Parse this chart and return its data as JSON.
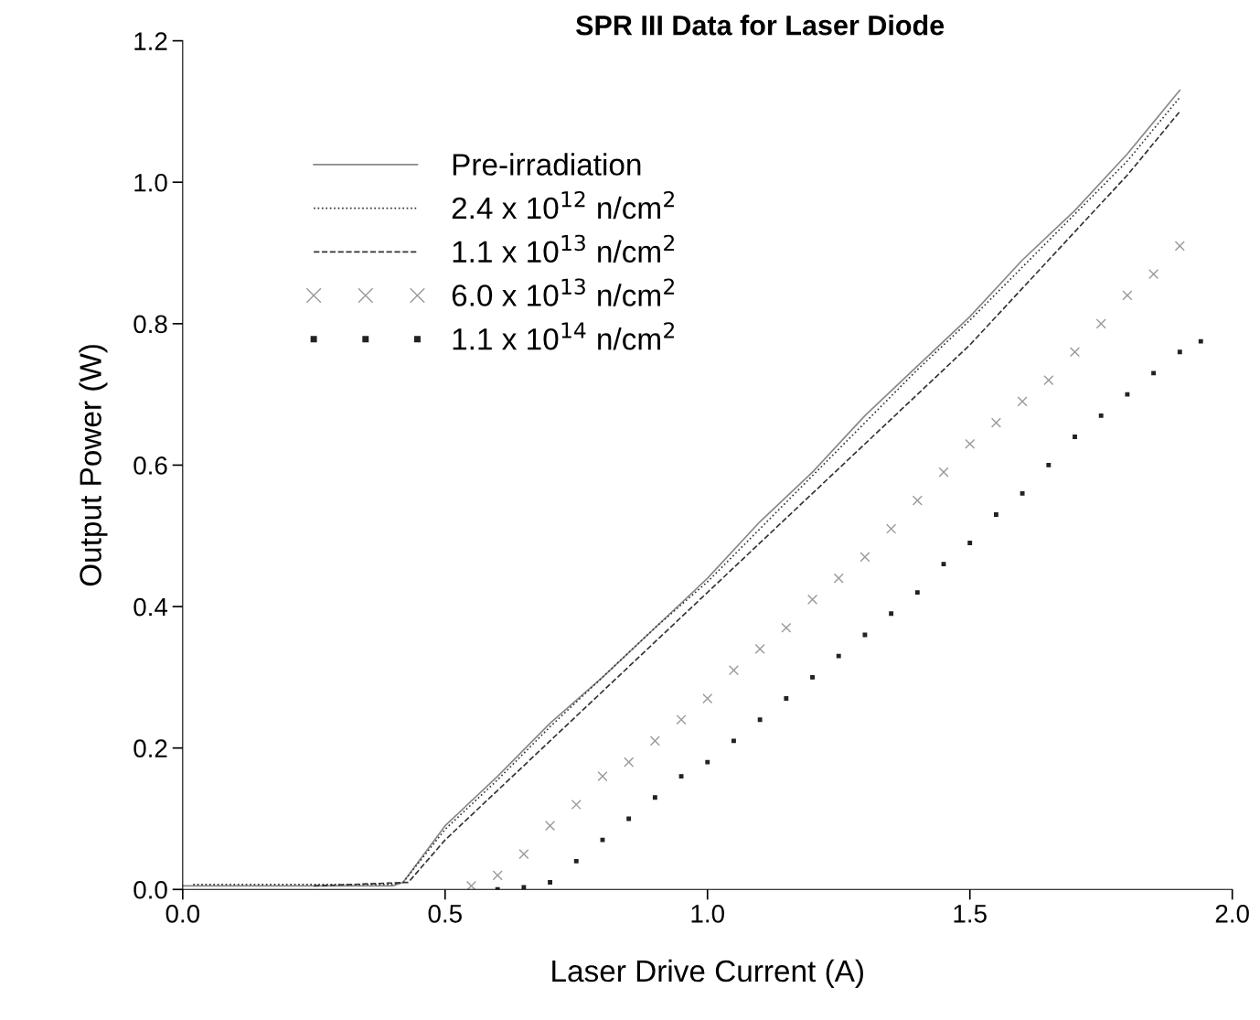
{
  "chart_data": {
    "type": "line",
    "title": "SPR III Data for Laser Diode",
    "xlabel": "Laser Drive Current (A)",
    "ylabel": "Output Power (W)",
    "xlim": [
      0,
      2.0
    ],
    "ylim": [
      0,
      1.2
    ],
    "xticks": [
      {
        "value": 0,
        "label": "0.0"
      },
      {
        "value": 0.5,
        "label": "0.5"
      },
      {
        "value": 1.0,
        "label": "1.0"
      },
      {
        "value": 1.5,
        "label": "1.5"
      },
      {
        "value": 2.0,
        "label": "2.0"
      }
    ],
    "yticks": [
      {
        "value": 0,
        "label": "0.0"
      },
      {
        "value": 0.2,
        "label": "0.2"
      },
      {
        "value": 0.4,
        "label": "0.4"
      },
      {
        "value": 0.6,
        "label": "0.6"
      },
      {
        "value": 0.8,
        "label": "0.8"
      },
      {
        "value": 1.0,
        "label": "1.0"
      },
      {
        "value": 1.2,
        "label": "1.2"
      }
    ],
    "grid": false,
    "legend": "top left",
    "series": [
      {
        "name": "Pre-irradiation",
        "color": "#888888",
        "line_style": "solid",
        "marker": "none",
        "x": [
          0,
          0.2,
          0.4,
          0.42,
          0.5,
          0.6,
          0.7,
          0.8,
          0.9,
          1.0,
          1.1,
          1.2,
          1.3,
          1.4,
          1.5,
          1.6,
          1.7,
          1.8,
          1.9
        ],
        "values": [
          0.005,
          0.005,
          0.005,
          0.01,
          0.09,
          0.16,
          0.235,
          0.3,
          0.37,
          0.44,
          0.52,
          0.59,
          0.67,
          0.74,
          0.81,
          0.89,
          0.96,
          1.04,
          1.13
        ]
      },
      {
        "name": "2.4 x 10$^{12}$ n/cm$^{2}$",
        "color": "#333333",
        "line_style": "dotted",
        "marker": "none",
        "x": [
          0.02,
          0.2,
          0.4,
          0.42,
          0.5,
          0.6,
          0.7,
          0.8,
          0.9,
          1.0,
          1.1,
          1.2,
          1.3,
          1.4,
          1.5,
          1.6,
          1.7,
          1.8,
          1.9
        ],
        "values": [
          0.007,
          0.007,
          0.007,
          0.01,
          0.085,
          0.155,
          0.23,
          0.3,
          0.37,
          0.435,
          0.51,
          0.585,
          0.66,
          0.735,
          0.805,
          0.88,
          0.955,
          1.03,
          1.12
        ]
      },
      {
        "name": "1.1 x 10$^{13}$ n/cm$^{2}$",
        "color": "#333333",
        "line_style": "dashed",
        "marker": "none",
        "x": [
          0.25,
          0.43,
          0.5,
          0.6,
          0.7,
          0.8,
          0.9,
          1.0,
          1.1,
          1.2,
          1.3,
          1.4,
          1.5,
          1.6,
          1.7,
          1.8,
          1.9
        ],
        "values": [
          0.005,
          0.01,
          0.07,
          0.14,
          0.21,
          0.28,
          0.35,
          0.42,
          0.49,
          0.56,
          0.63,
          0.7,
          0.77,
          0.85,
          0.93,
          1.01,
          1.1
        ]
      },
      {
        "name": "6.0 x 10$^{13}$ n/cm$^{2}$",
        "type": "scatter",
        "color": "#999999",
        "marker": "cross",
        "x": [
          0.55,
          0.6,
          0.65,
          0.7,
          0.75,
          0.8,
          0.85,
          0.9,
          0.95,
          1.0,
          1.05,
          1.1,
          1.15,
          1.2,
          1.25,
          1.3,
          1.35,
          1.4,
          1.45,
          1.5,
          1.55,
          1.6,
          1.65,
          1.7,
          1.75,
          1.8,
          1.85,
          1.9
        ],
        "values": [
          0.005,
          0.02,
          0.05,
          0.09,
          0.12,
          0.16,
          0.18,
          0.21,
          0.24,
          0.27,
          0.31,
          0.34,
          0.37,
          0.41,
          0.44,
          0.47,
          0.51,
          0.55,
          0.59,
          0.63,
          0.66,
          0.69,
          0.72,
          0.76,
          0.8,
          0.84,
          0.87,
          0.91
        ]
      },
      {
        "name": "1.1 x 10$^{14}$ n/cm$^{2}$",
        "type": "scatter",
        "color": "#222222",
        "marker": "square",
        "x": [
          0.6,
          0.65,
          0.7,
          0.75,
          0.8,
          0.85,
          0.9,
          0.95,
          1.0,
          1.05,
          1.1,
          1.15,
          1.2,
          1.25,
          1.3,
          1.35,
          1.4,
          1.45,
          1.5,
          1.55,
          1.6,
          1.65,
          1.7,
          1.75,
          1.8,
          1.85,
          1.9,
          1.94
        ],
        "values": [
          0.0,
          0.003,
          0.01,
          0.04,
          0.07,
          0.1,
          0.13,
          0.16,
          0.18,
          0.21,
          0.24,
          0.27,
          0.3,
          0.33,
          0.36,
          0.39,
          0.42,
          0.46,
          0.49,
          0.53,
          0.56,
          0.6,
          0.64,
          0.67,
          0.7,
          0.73,
          0.76,
          0.775
        ]
      }
    ]
  }
}
